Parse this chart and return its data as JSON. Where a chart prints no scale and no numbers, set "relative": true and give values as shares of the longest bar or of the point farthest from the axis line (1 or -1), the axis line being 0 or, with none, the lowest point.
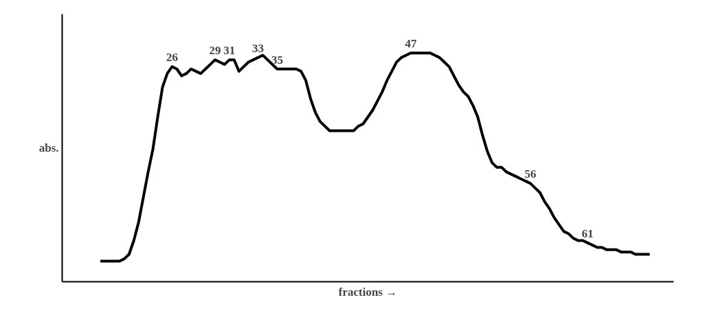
{
  "chart_data": {
    "type": "line",
    "relative": true,
    "xlabel": "fractions →",
    "ylabel": "abs.",
    "categories": [
      null,
      null,
      null,
      null,
      null,
      null,
      null,
      null,
      null,
      null,
      null,
      null,
      null,
      null,
      null,
      null,
      null,
      null,
      null,
      null,
      null,
      null,
      null,
      null,
      null,
      null,
      null,
      null,
      null,
      null,
      null,
      null,
      null,
      null,
      null,
      null,
      null,
      null,
      null,
      null,
      null,
      null,
      null,
      null,
      null,
      null,
      null,
      null,
      null,
      null,
      null,
      null,
      null,
      null,
      null,
      null,
      null,
      null,
      null,
      null,
      null,
      null,
      null,
      null,
      null,
      null,
      null,
      null,
      null,
      null,
      null,
      null,
      null,
      null,
      null,
      null,
      null,
      null,
      null,
      null,
      null,
      null,
      null,
      null,
      null,
      null,
      null,
      null,
      null,
      null,
      null,
      null,
      null,
      null,
      null,
      null,
      null,
      null,
      null,
      null,
      null,
      null,
      null,
      null,
      null,
      null,
      null,
      null,
      null,
      null,
      null,
      null,
      null,
      null,
      null,
      null
    ],
    "series": [
      {
        "color": "#000000",
        "values": [
          0.09,
          0.09,
          0.09,
          0.09,
          0.09,
          0.1,
          0.12,
          0.18,
          0.26,
          0.37,
          0.48,
          0.58,
          0.72,
          0.85,
          0.91,
          0.94,
          0.93,
          0.9,
          0.91,
          0.93,
          0.92,
          0.91,
          0.93,
          0.95,
          0.97,
          0.96,
          0.95,
          0.97,
          0.97,
          0.92,
          0.94,
          0.96,
          0.97,
          0.98,
          0.99,
          0.97,
          0.95,
          0.93,
          0.93,
          0.93,
          0.93,
          0.93,
          0.92,
          0.88,
          0.8,
          0.74,
          0.7,
          0.68,
          0.66,
          0.66,
          0.66,
          0.66,
          0.66,
          0.66,
          0.68,
          0.69,
          0.72,
          0.75,
          0.79,
          0.83,
          0.88,
          0.92,
          0.96,
          0.98,
          0.99,
          1.0,
          1.0,
          1.0,
          1.0,
          1.0,
          0.99,
          0.98,
          0.96,
          0.94,
          0.9,
          0.86,
          0.83,
          0.81,
          0.77,
          0.72,
          0.64,
          0.57,
          0.52,
          0.5,
          0.5,
          0.48,
          0.47,
          0.46,
          0.45,
          0.44,
          0.43,
          0.41,
          0.39,
          0.35,
          0.32,
          0.28,
          0.25,
          0.22,
          0.21,
          0.19,
          0.18,
          0.18,
          0.17,
          0.16,
          0.15,
          0.15,
          0.14,
          0.14,
          0.14,
          0.13,
          0.13,
          0.13,
          0.12,
          0.12,
          0.12,
          0.12
        ]
      }
    ],
    "annotations": [
      {
        "text": "26",
        "y": 0.94
      },
      {
        "text": "29",
        "y": 0.97
      },
      {
        "text": "31",
        "y": 0.97
      },
      {
        "text": "33",
        "y": 0.98
      },
      {
        "text": "35",
        "y": 0.93
      },
      {
        "text": "47",
        "y": 1.0
      },
      {
        "text": "56",
        "y": 0.43
      },
      {
        "text": "61",
        "y": 0.17
      }
    ]
  }
}
